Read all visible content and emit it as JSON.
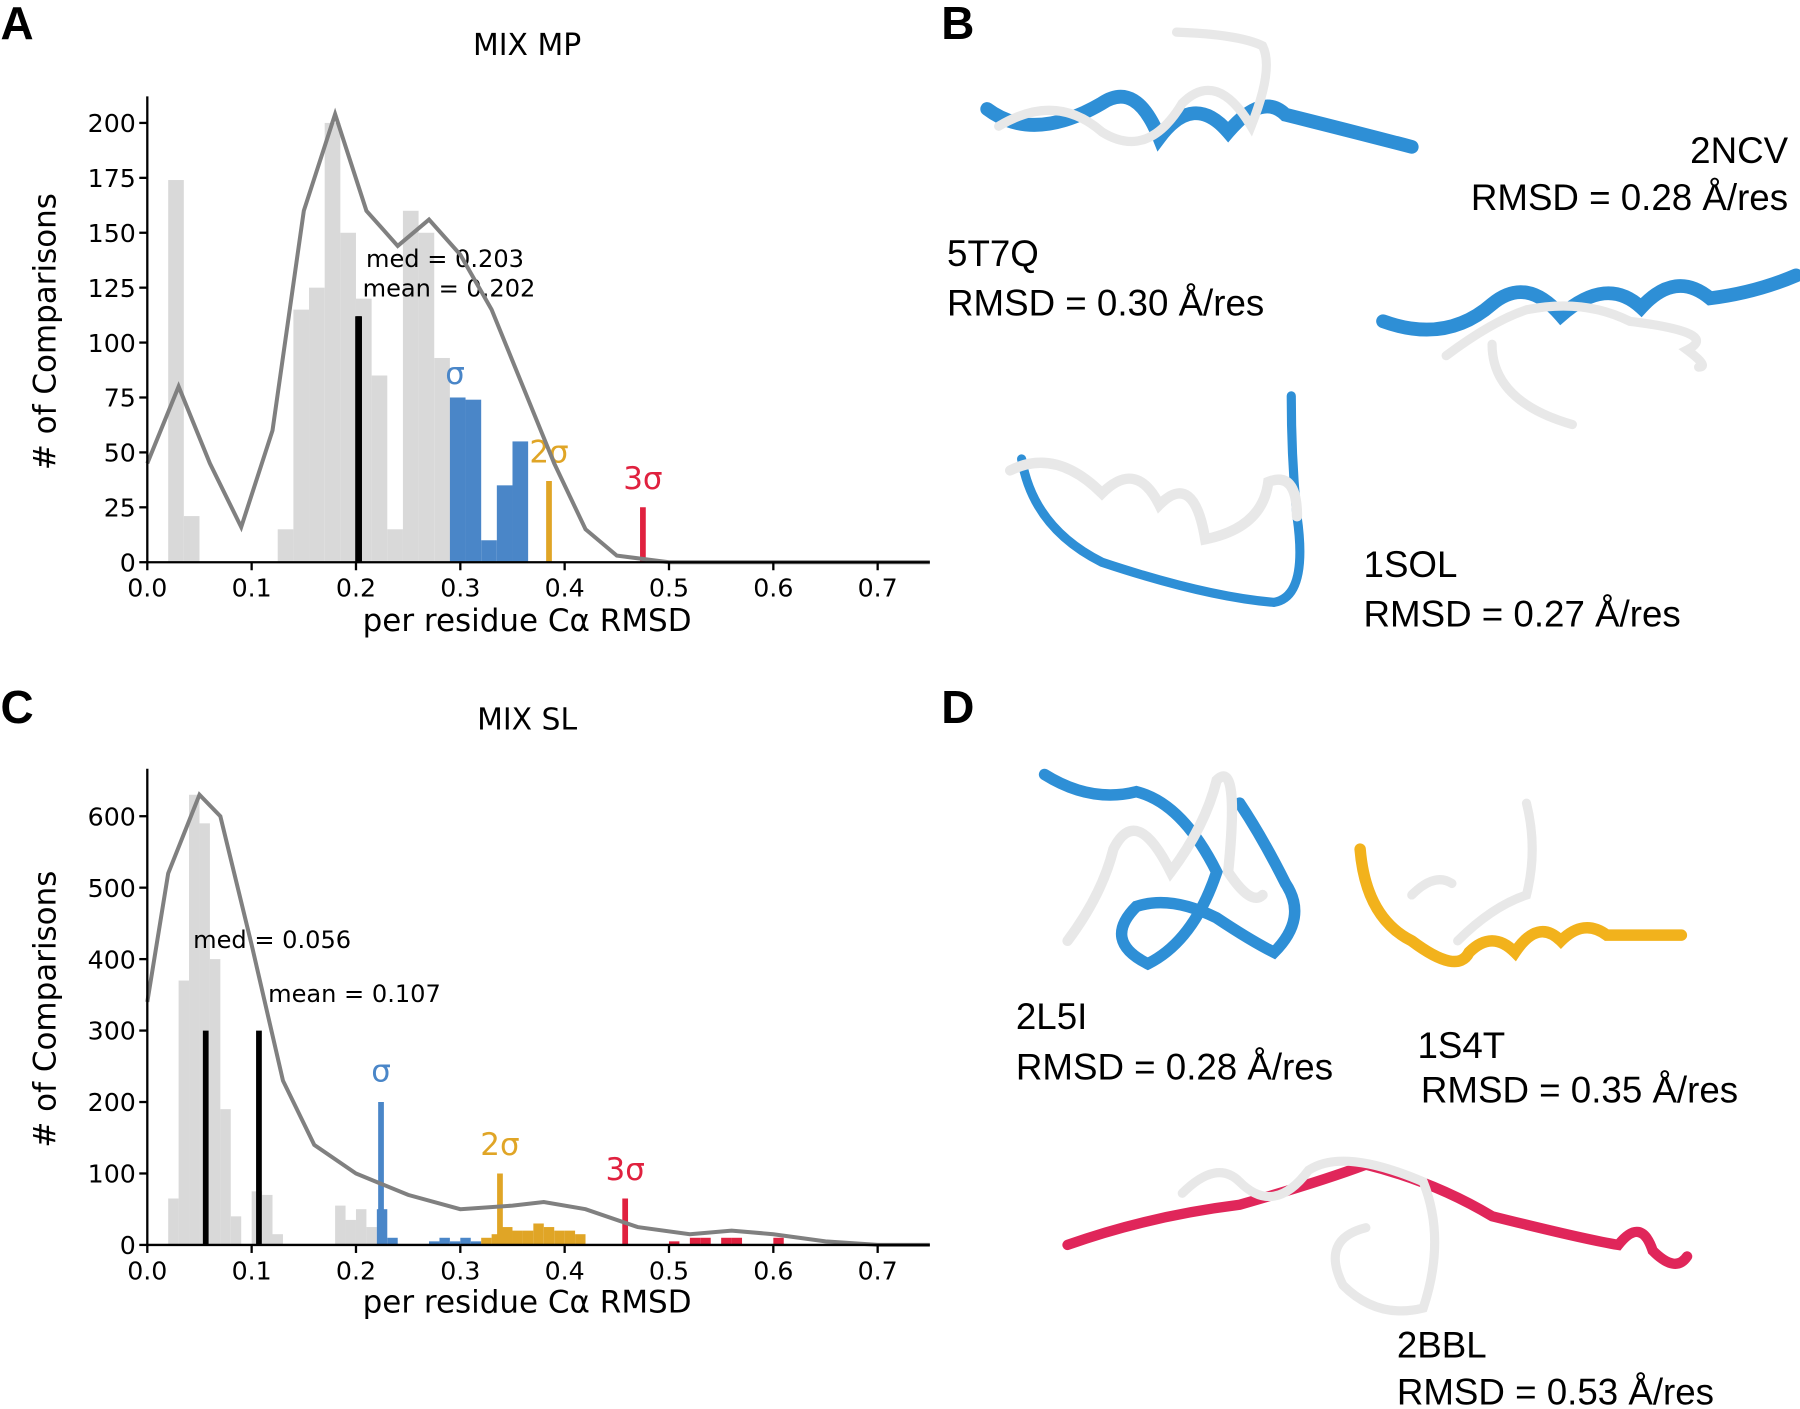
{
  "panels": [
    "A",
    "B",
    "C",
    "D"
  ],
  "chart_data": [
    {
      "type": "histogram",
      "title": "MIX MP",
      "xlabel": "per residue Cα RMSD",
      "ylabel": "# of Comparisons",
      "xlim": [
        0,
        0.75
      ],
      "ylim": [
        0,
        210
      ],
      "xticks": [
        {
          "value": 0,
          "label": "0.0"
        },
        0.1,
        0.2,
        0.3,
        0.4,
        0.5,
        0.6,
        0.7
      ],
      "yticks": [
        0,
        25,
        50,
        75,
        100,
        125,
        150,
        175,
        200
      ],
      "bins": [
        0.02,
        0.035,
        0.05,
        0.065,
        0.08,
        0.095,
        0.11,
        0.125,
        0.14,
        0.155,
        0.17,
        0.185,
        0.2,
        0.215,
        0.23,
        0.245,
        0.26,
        0.275,
        0.29,
        0.305,
        0.32,
        0.335,
        0.35,
        0.365
      ],
      "values": [
        174,
        21,
        0,
        0,
        0,
        0,
        0,
        15,
        115,
        125,
        200,
        150,
        120,
        85,
        15,
        160,
        150,
        93,
        75,
        74,
        10,
        35,
        55
      ],
      "colors": [
        "#d9d9d9",
        "#d9d9d9",
        "#d9d9d9",
        "#d9d9d9",
        "#d9d9d9",
        "#d9d9d9",
        "#d9d9d9",
        "#d9d9d9",
        "#d9d9d9",
        "#d9d9d9",
        "#d9d9d9",
        "#d9d9d9",
        "#d9d9d9",
        "#d9d9d9",
        "#d9d9d9",
        "#d9d9d9",
        "#d9d9d9",
        "#d9d9d9",
        "#4a86c8",
        "#4a86c8",
        "#4a86c8",
        "#4a86c8",
        "#4a86c8"
      ],
      "kde": {
        "color": "#808080",
        "x": [
          0,
          0.03,
          0.06,
          0.09,
          0.12,
          0.15,
          0.18,
          0.21,
          0.24,
          0.27,
          0.3,
          0.33,
          0.36,
          0.39,
          0.42,
          0.45,
          0.5,
          0.6,
          0.75
        ],
        "y": [
          45,
          80,
          45,
          16,
          60,
          160,
          204,
          160,
          144,
          156,
          140,
          115,
          80,
          45,
          15,
          3,
          0,
          0,
          0
        ]
      },
      "markers": [
        {
          "x": 0.203,
          "height": 112,
          "color": "#000000",
          "label": "med = 0.203"
        },
        {
          "x": 0.202,
          "height": 112,
          "color": "#000000",
          "label": "mean = 0.202"
        },
        {
          "x": 0.385,
          "height": 37,
          "color": "#e0a526",
          "label": "2σ"
        },
        {
          "x": 0.475,
          "height": 25,
          "color": "#e0213f",
          "label": "3σ"
        }
      ],
      "annotations": [
        {
          "x": 0.295,
          "y": 78,
          "color": "#4a86c8",
          "label": "σ"
        }
      ]
    },
    {
      "type": "histogram",
      "title": "MIX SL",
      "xlabel": "per residue Cα RMSD",
      "ylabel": "# of Comparisons",
      "xlim": [
        0,
        0.75
      ],
      "ylim": [
        0,
        660
      ],
      "xticks": [
        {
          "value": 0,
          "label": "0.0"
        },
        0.1,
        0.2,
        0.3,
        0.4,
        0.5,
        0.6,
        0.7
      ],
      "yticks": [
        0,
        100,
        200,
        300,
        400,
        500,
        600
      ],
      "bins": [
        0.02,
        0.03,
        0.04,
        0.05,
        0.06,
        0.07,
        0.08,
        0.09,
        0.1,
        0.11,
        0.12,
        0.13,
        0.14,
        0.15,
        0.16,
        0.17,
        0.18,
        0.19,
        0.2,
        0.21,
        0.22,
        0.23,
        0.24,
        0.25,
        0.26,
        0.27,
        0.28,
        0.29,
        0.3,
        0.31,
        0.32,
        0.33,
        0.34,
        0.35,
        0.36,
        0.37,
        0.38,
        0.39,
        0.4,
        0.41,
        0.42,
        0.43,
        0.44,
        0.45,
        0.46,
        0.47,
        0.48,
        0.49,
        0.5,
        0.51,
        0.52,
        0.53,
        0.54,
        0.55,
        0.56,
        0.57,
        0.58,
        0.59,
        0.6,
        0.61
      ],
      "values": [
        65,
        370,
        630,
        590,
        400,
        190,
        40,
        0,
        75,
        70,
        15,
        0,
        0,
        0,
        0,
        0,
        55,
        35,
        50,
        25,
        50,
        10,
        0,
        0,
        0,
        5,
        10,
        5,
        10,
        5,
        10,
        15,
        25,
        20,
        20,
        30,
        25,
        20,
        20,
        15,
        0,
        0,
        0,
        0,
        0,
        0,
        0,
        0,
        5,
        0,
        10,
        10,
        0,
        10,
        10,
        0,
        0,
        0,
        10
      ],
      "colors": [
        "#d9d9d9",
        "#d9d9d9",
        "#d9d9d9",
        "#d9d9d9",
        "#d9d9d9",
        "#d9d9d9",
        "#d9d9d9",
        "#d9d9d9",
        "#d9d9d9",
        "#d9d9d9",
        "#d9d9d9",
        "#d9d9d9",
        "#d9d9d9",
        "#d9d9d9",
        "#d9d9d9",
        "#d9d9d9",
        "#d9d9d9",
        "#d9d9d9",
        "#d9d9d9",
        "#d9d9d9",
        "#4a86c8",
        "#4a86c8",
        "#4a86c8",
        "#4a86c8",
        "#4a86c8",
        "#4a86c8",
        "#4a86c8",
        "#4a86c8",
        "#4a86c8",
        "#4a86c8",
        "#e0a526",
        "#e0a526",
        "#e0a526",
        "#e0a526",
        "#e0a526",
        "#e0a526",
        "#e0a526",
        "#e0a526",
        "#e0a526",
        "#e0a526",
        "#e0a526",
        "#e0a526",
        "#e0a526",
        "#e0a526",
        "#e0a526",
        "#e0a526",
        "#e0a526",
        "#e0a526",
        "#e0213f",
        "#e0213f",
        "#e0213f",
        "#e0213f",
        "#e0213f",
        "#e0213f",
        "#e0213f",
        "#e0213f",
        "#e0213f",
        "#e0213f",
        "#e0213f"
      ],
      "kde": {
        "color": "#808080",
        "x": [
          0,
          0.02,
          0.05,
          0.07,
          0.1,
          0.13,
          0.16,
          0.2,
          0.25,
          0.3,
          0.35,
          0.38,
          0.42,
          0.47,
          0.52,
          0.56,
          0.6,
          0.65,
          0.7,
          0.75
        ],
        "y": [
          340,
          520,
          630,
          600,
          420,
          230,
          140,
          100,
          70,
          50,
          55,
          60,
          50,
          25,
          15,
          20,
          15,
          5,
          0,
          0
        ]
      },
      "markers": [
        {
          "x": 0.056,
          "height": 300,
          "color": "#000000",
          "label": "med = 0.056"
        },
        {
          "x": 0.107,
          "height": 300,
          "color": "#000000",
          "label": "mean = 0.107"
        },
        {
          "x": 0.224,
          "height": 200,
          "color": "#4a86c8",
          "label": "σ"
        },
        {
          "x": 0.338,
          "height": 100,
          "color": "#e0a526",
          "label": "2σ"
        },
        {
          "x": 0.458,
          "height": 65,
          "color": "#e0213f",
          "label": "3σ"
        }
      ],
      "annotations": []
    }
  ],
  "structures": [
    {
      "id": "5T7Q",
      "label": "RMSD = 0.30 Å/res"
    },
    {
      "id": "2NCV",
      "label": "RMSD = 0.28 Å/res"
    },
    {
      "id": "1SOL",
      "label": "RMSD = 0.27 Å/res"
    },
    {
      "id": "2L5I",
      "label": "RMSD = 0.28 Å/res"
    },
    {
      "id": "1S4T",
      "label": "RMSD = 0.35 Å/res"
    },
    {
      "id": "2BBL",
      "label": "RMSD = 0.53 Å/res"
    }
  ]
}
